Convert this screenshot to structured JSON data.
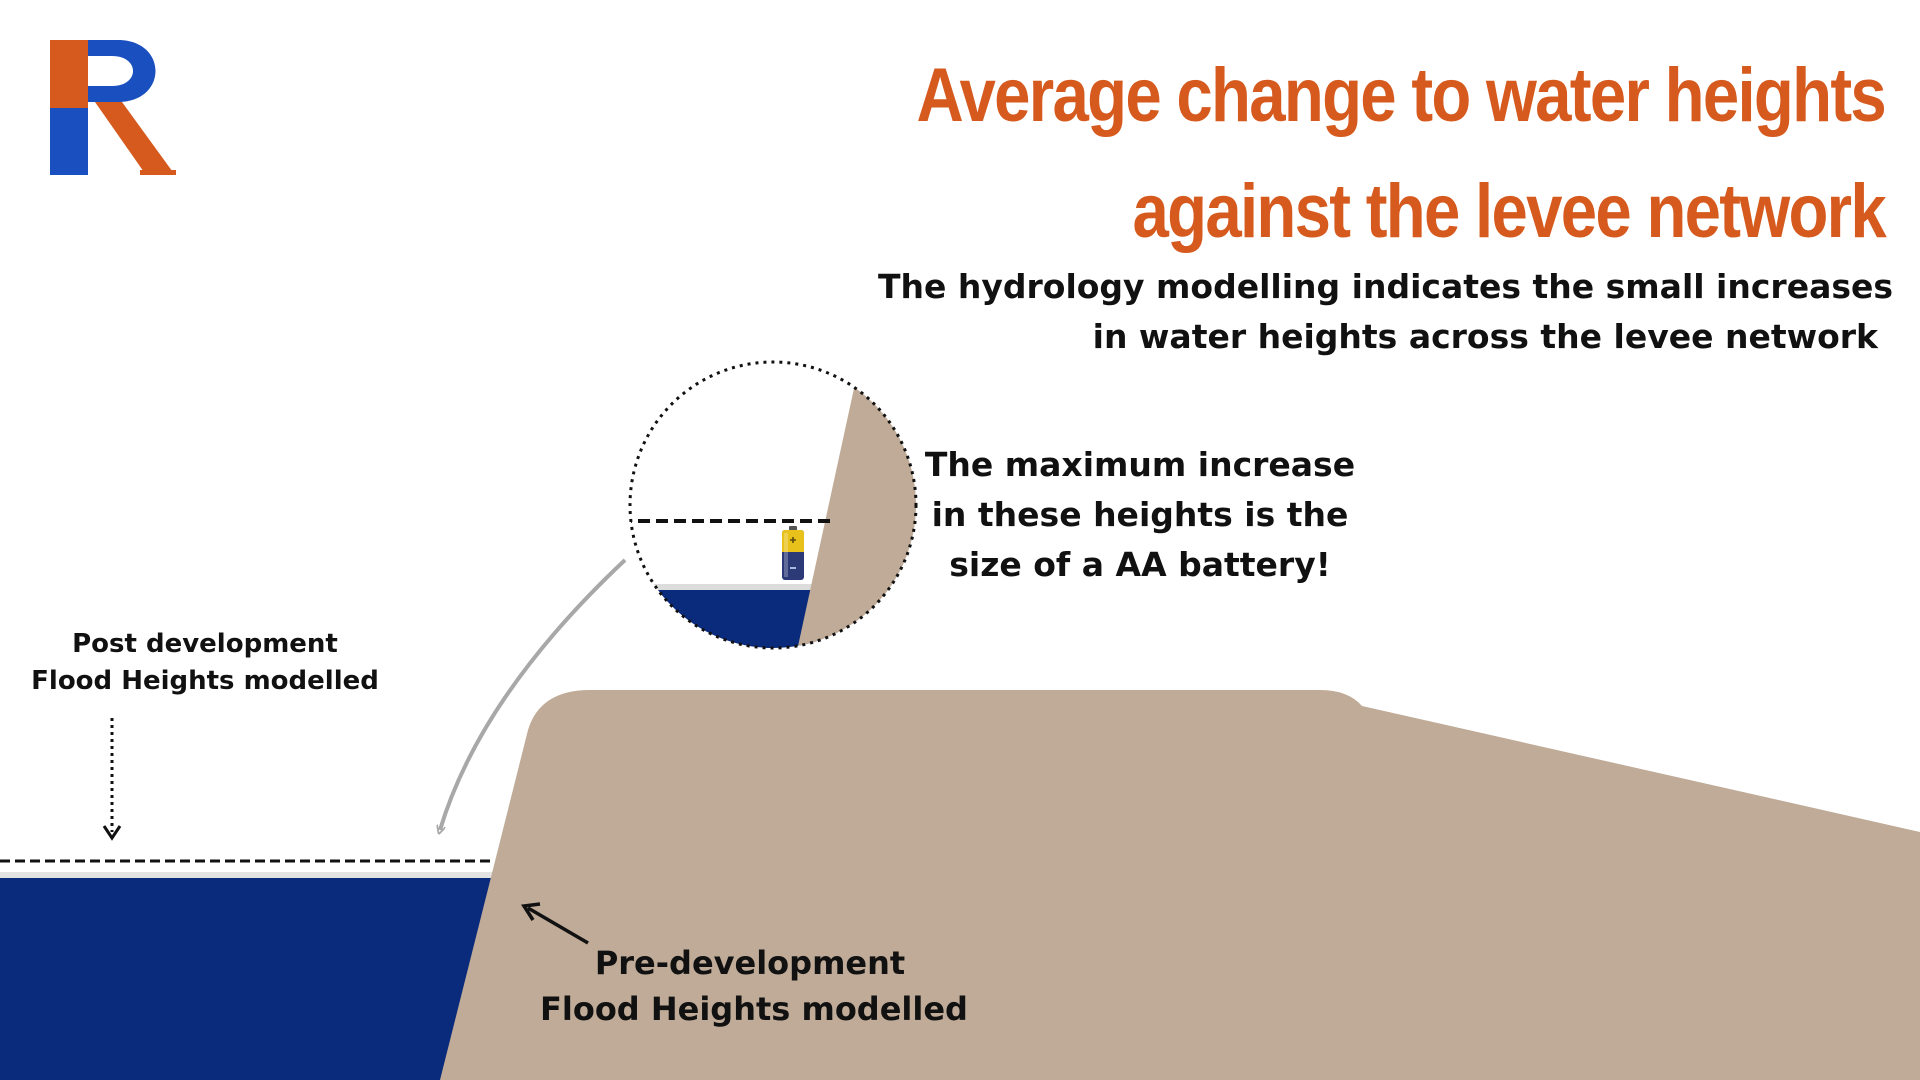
{
  "title": {
    "line1": "Average change to water heights",
    "line2": "against the levee network"
  },
  "subtitle": {
    "line1": "The hydrology modelling indicates the small increases",
    "line2": "in water heights across the levee network"
  },
  "callout": {
    "line1": "The maximum increase",
    "line2": "in these heights is the",
    "line3": "size of a AA battery!"
  },
  "post_label": {
    "line1": "Post development",
    "line2": "Flood Heights modelled"
  },
  "pre_label": {
    "line1": "Pre-development",
    "line2": "Flood Heights modelled"
  },
  "logo": {
    "text": "R"
  },
  "colors": {
    "accent_orange": "#d65a1e",
    "logo_blue": "#1a4fc0",
    "water_navy": "#0a2a7c",
    "levee_tan": "#bfab97",
    "text_dark": "#111111"
  }
}
